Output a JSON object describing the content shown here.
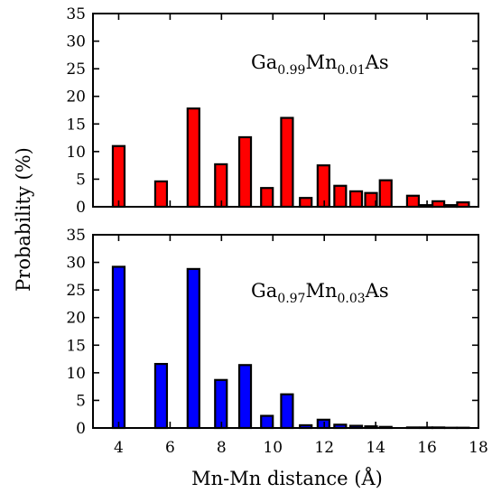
{
  "chart_data": {
    "type": "bar",
    "ylabel": "Probability (%)",
    "xlabel": "Mn-Mn distance (Å)",
    "xlim": [
      3,
      18
    ],
    "ylim": [
      0,
      35
    ],
    "xticks": [
      "4",
      "6",
      "8",
      "10",
      "12",
      "14",
      "16",
      "18"
    ],
    "yticks": [
      "0",
      "5",
      "10",
      "15",
      "20",
      "25",
      "30",
      "35"
    ],
    "panels": [
      {
        "label_main": "Ga",
        "label_sub1": "0.99",
        "label_mid": "Mn",
        "label_sub2": "0.01",
        "label_end": "As",
        "color": "#ff0000",
        "x": [
          4.0,
          5.65,
          6.91,
          7.98,
          8.92,
          9.77,
          10.55,
          11.28,
          11.97,
          12.62,
          13.24,
          13.82,
          14.39,
          15.45,
          15.97,
          16.44,
          16.93,
          17.4
        ],
        "values": [
          11.0,
          4.6,
          17.8,
          7.7,
          12.6,
          3.4,
          16.1,
          1.6,
          7.5,
          3.8,
          2.8,
          2.5,
          4.8,
          2.0,
          0.3,
          1.0,
          0.3,
          0.8
        ]
      },
      {
        "label_main": "Ga",
        "label_sub1": "0.97",
        "label_mid": "Mn",
        "label_sub2": "0.03",
        "label_end": "As",
        "color": "#0000ff",
        "x": [
          4.0,
          5.65,
          6.91,
          7.98,
          8.92,
          9.77,
          10.55,
          11.28,
          11.97,
          12.62,
          13.24,
          13.82,
          14.39,
          15.45,
          15.97,
          16.44,
          16.93,
          17.4
        ],
        "values": [
          29.2,
          11.6,
          28.8,
          8.7,
          11.4,
          2.2,
          6.1,
          0.5,
          1.5,
          0.6,
          0.4,
          0.3,
          0.2,
          0.1,
          0.1,
          0.1,
          0.05,
          0.05
        ]
      }
    ]
  }
}
